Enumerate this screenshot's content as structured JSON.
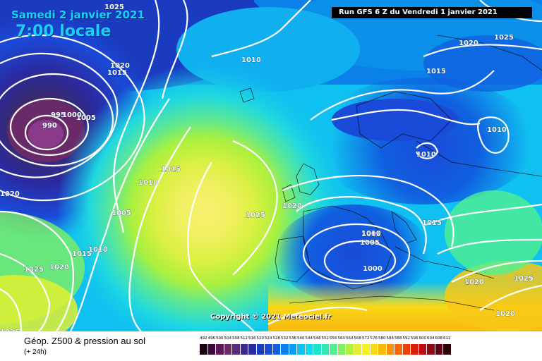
{
  "header": {
    "date_line": "Samedi 2 janvier 2021",
    "time_line": "7:00 locale",
    "run_banner": "Run GFS 6 Z du Vendredi 1 janvier 2021"
  },
  "copyright": "Copyright © 2021 Meteociel.fr",
  "footer": {
    "product_title": "Géop. Z500 & pression au sol",
    "lead_time": "(+ 24h)"
  },
  "legend": {
    "values": [
      "492",
      "496",
      "500",
      "504",
      "508",
      "512",
      "516",
      "520",
      "524",
      "528",
      "532",
      "536",
      "540",
      "544",
      "548",
      "552",
      "556",
      "560",
      "564",
      "568",
      "572",
      "576",
      "580",
      "584",
      "588",
      "592",
      "596",
      "600",
      "604",
      "608",
      "612"
    ],
    "colors": [
      "#1a001a",
      "#3a0a3a",
      "#5a1a5a",
      "#6a2a6a",
      "#5a2a7a",
      "#3a2a8a",
      "#2a2aa0",
      "#1a3ac0",
      "#1a4ad8",
      "#1060e0",
      "#0a80e8",
      "#08a0f0",
      "#10c0f0",
      "#10d8f0",
      "#20e0d0",
      "#30e8b0",
      "#50f090",
      "#80f060",
      "#b0f040",
      "#e0f030",
      "#f8f020",
      "#f8d818",
      "#f8b810",
      "#f89010",
      "#f86808",
      "#f04008",
      "#d82008",
      "#c00818",
      "#900818",
      "#600010",
      "#300008"
    ]
  },
  "isobars": [
    "1025",
    "1010",
    "1020",
    "1015",
    "995",
    "1005",
    "1000",
    "990",
    "1015",
    "1010",
    "1020",
    "1005",
    "1025",
    "1015",
    "1010",
    "1025",
    "1020",
    "1020",
    "1005",
    "1020",
    "1025",
    "1015",
    "1010",
    "1010",
    "1010",
    "1005",
    "1000",
    "1015",
    "1020",
    "1025",
    "1025",
    "1020"
  ]
}
